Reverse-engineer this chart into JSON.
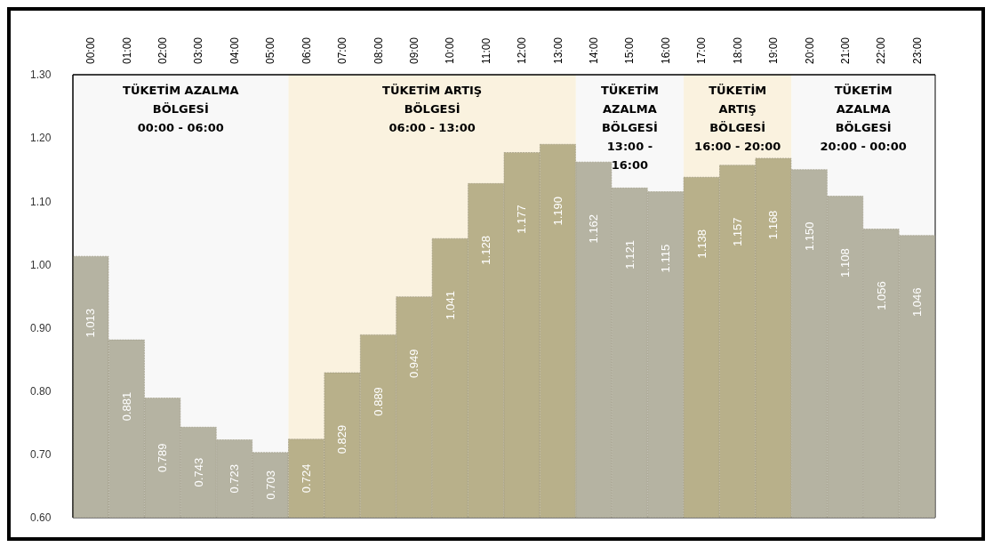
{
  "chart_data": {
    "type": "bar",
    "categories": [
      "00:00",
      "01:00",
      "02:00",
      "03:00",
      "04:00",
      "05:00",
      "06:00",
      "07:00",
      "08:00",
      "09:00",
      "10:00",
      "11:00",
      "12:00",
      "13:00",
      "14:00",
      "15:00",
      "16:00",
      "17:00",
      "18:00",
      "19:00",
      "20:00",
      "21:00",
      "22:00",
      "23:00"
    ],
    "values": [
      1.013,
      0.881,
      0.789,
      0.743,
      0.723,
      0.703,
      0.724,
      0.829,
      0.889,
      0.949,
      1.041,
      1.128,
      1.177,
      1.19,
      1.162,
      1.121,
      1.115,
      1.138,
      1.157,
      1.168,
      1.15,
      1.108,
      1.056,
      1.046
    ],
    "value_labels": [
      "1.013",
      "0.881",
      "0.789",
      "0.743",
      "0.723",
      "0.703",
      "0.724",
      "0.829",
      "0.889",
      "0.949",
      "1.041",
      "1.128",
      "1.177",
      "1.190",
      "1.162",
      "1.121",
      "1.115",
      "1.138",
      "1.157",
      "1.168",
      "1.150",
      "1.108",
      "1.056",
      "1.046"
    ],
    "colors": [
      "#b5b3a2",
      "#b5b3a2",
      "#b5b3a2",
      "#b5b3a2",
      "#b5b3a2",
      "#b5b3a2",
      "#b8b08a",
      "#b8b08a",
      "#b8b08a",
      "#b8b08a",
      "#b8b08a",
      "#b8b08a",
      "#b8b08a",
      "#b8b08a",
      "#b5b3a2",
      "#b5b3a2",
      "#b5b3a2",
      "#b8b08a",
      "#b8b08a",
      "#b8b08a",
      "#b5b3a2",
      "#b5b3a2",
      "#b5b3a2",
      "#b5b3a2"
    ],
    "ylim": [
      0.6,
      1.3
    ],
    "yticks": [
      {
        "value": 0.6,
        "label": "0.60"
      },
      {
        "value": 0.7,
        "label": "0.70"
      },
      {
        "value": 0.8,
        "label": "0.80"
      },
      {
        "value": 0.9,
        "label": "0.90"
      },
      {
        "value": 1.0,
        "label": "1.00"
      },
      {
        "value": 1.1,
        "label": "1.10"
      },
      {
        "value": 1.2,
        "label": "1.20"
      },
      {
        "value": 1.3,
        "label": "1.30"
      }
    ],
    "bands": [
      {
        "axis": "x",
        "from": "00:00",
        "to": "05:00",
        "label": "TÜKETİM AZALMA\nBÖLGESİ\n00:00 - 06:00",
        "color": "#f8f8f8"
      },
      {
        "axis": "x",
        "from": "06:00",
        "to": "13:00",
        "label": "TÜKETİM ARTIŞ\nBÖLGESİ\n06:00 - 13:00",
        "color": "#faf2df"
      },
      {
        "axis": "x",
        "from": "14:00",
        "to": "16:00",
        "label": "TÜKETİM\nAZALMA\nBÖLGESİ\n13:00 -\n16:00",
        "color": "#f8f8f8"
      },
      {
        "axis": "x",
        "from": "17:00",
        "to": "19:00",
        "label": "TÜKETİM\nARTIŞ\nBÖLGESİ\n16:00 - 20:00",
        "color": "#faf2df"
      },
      {
        "axis": "x",
        "from": "20:00",
        "to": "23:00",
        "label": "TÜKETİM\nAZALMA\nBÖLGESİ\n20:00 - 00:00",
        "color": "#f8f8f8"
      }
    ],
    "grid": false
  }
}
